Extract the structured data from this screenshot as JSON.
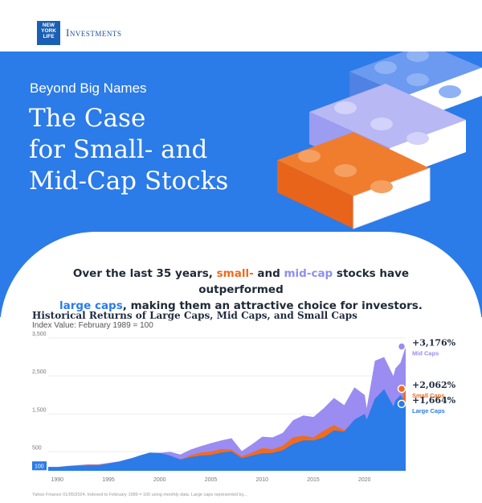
{
  "brand": {
    "logo_lines": [
      "NEW",
      "YORK",
      "LIFE"
    ],
    "name": "Investments"
  },
  "hero": {
    "eyebrow": "Beyond Big Names",
    "headline_lines": [
      "The Case",
      "for Small- and",
      "Mid-Cap Stocks"
    ]
  },
  "intro": {
    "part1": "Over the last 35 years, ",
    "small": "small-",
    "part2": " and ",
    "mid": "mid-cap",
    "part3": " stocks have outperformed",
    "large": "large caps",
    "part4": ", making them an attractive choice for investors."
  },
  "chart_data": {
    "type": "area",
    "title": "Historical Returns of Large Caps, Mid Caps, and Small Caps",
    "subtitle": "Index Value: February 1989 = 100",
    "y_ticks": [
      "3,500",
      "2,500",
      "1,500",
      "500",
      "100"
    ],
    "x_ticks": [
      "1990",
      "1995",
      "2000",
      "2005",
      "2010",
      "2015",
      "2020"
    ],
    "ylim": [
      0,
      3500
    ],
    "x": [
      1989.1,
      1990,
      1991,
      1992,
      1993,
      1994,
      1995,
      1996,
      1997,
      1998,
      1999,
      2000,
      2001,
      2002,
      2003,
      2004,
      2005,
      2006,
      2007,
      2008,
      2009,
      2010,
      2011,
      2012,
      2013,
      2014,
      2015,
      2016,
      2017,
      2018,
      2019,
      2020,
      2020.2,
      2021,
      2021.9,
      2022.8,
      2023,
      2023.5,
      2024
    ],
    "series": [
      {
        "name": "Mid Caps",
        "color": "#9b8cf2",
        "values": [
          100,
          100,
          130,
          150,
          170,
          170,
          210,
          250,
          320,
          360,
          400,
          470,
          500,
          430,
          560,
          650,
          730,
          800,
          860,
          520,
          700,
          900,
          880,
          1000,
          1330,
          1460,
          1420,
          1650,
          1920,
          1730,
          2200,
          2000,
          1650,
          2900,
          3000,
          2500,
          2700,
          2850,
          3276
        ]
      },
      {
        "name": "Small Caps",
        "color": "#f26b1d",
        "values": [
          100,
          95,
          120,
          140,
          160,
          155,
          190,
          220,
          270,
          260,
          280,
          320,
          340,
          290,
          410,
          480,
          510,
          570,
          560,
          380,
          480,
          600,
          570,
          660,
          880,
          930,
          880,
          1060,
          1200,
          1070,
          1310,
          1260,
          1000,
          1800,
          1960,
          1500,
          1600,
          1750,
          2162
        ]
      },
      {
        "name": "Large Caps",
        "color": "#2b7be8",
        "values": [
          100,
          100,
          120,
          130,
          140,
          145,
          190,
          240,
          310,
          400,
          480,
          470,
          400,
          300,
          360,
          400,
          420,
          480,
          510,
          330,
          400,
          460,
          470,
          540,
          710,
          800,
          800,
          880,
          1070,
          1030,
          1350,
          1500,
          1350,
          1900,
          2150,
          1700,
          1850,
          2000,
          1764
        ]
      }
    ],
    "end_labels": [
      {
        "value": "+3,176%",
        "name": "Mid Caps",
        "color": "#9b8cf2"
      },
      {
        "value": "+2,062%",
        "name": "Small Caps",
        "color": "#f26b1d"
      },
      {
        "value": "+1,664%",
        "name": "Large Caps",
        "color": "#2b7be8"
      }
    ]
  },
  "footnote": "Yahoo Finance 01/05/2024. Indexed to February 1989 = 100 using monthly data. Large caps represented by..."
}
